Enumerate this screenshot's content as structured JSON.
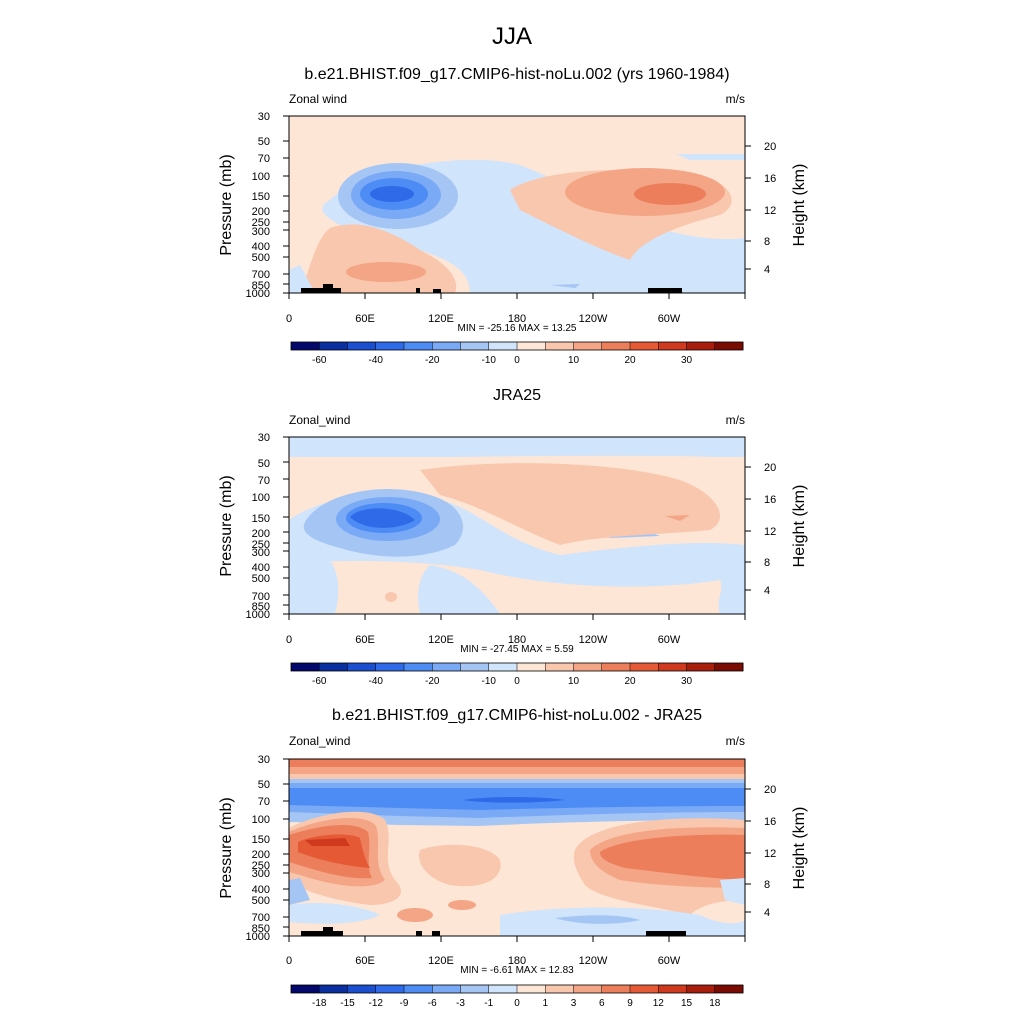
{
  "figure": {
    "title": "JJA"
  },
  "chart_data": [
    {
      "type": "heatmap",
      "title": "b.e21.BHIST.f09_g17.CMIP6-hist-noLu.002 (yrs 1960-1984)",
      "left_label": "Zonal wind",
      "right_label": "m/s",
      "stats": "MIN = -25.16  MAX =  13.25",
      "ylabel": "Pressure (mb)",
      "ylabel_right": "Height (km)",
      "x_ticks": [
        "0",
        "60E",
        "120E",
        "180",
        "120W",
        "60W"
      ],
      "y_ticks": [
        "30",
        "50",
        "70",
        "100",
        "150",
        "200",
        "250",
        "300",
        "400",
        "500",
        "700",
        "850",
        "1000"
      ],
      "height_ticks": [
        "20",
        "16",
        "12",
        "8",
        "4"
      ],
      "colorbar_labels": [
        "-60",
        "-40",
        "-20",
        "-10",
        "0",
        "10",
        "20",
        "30"
      ],
      "colorbar_colors": [
        "#04076b",
        "#0a2fa1",
        "#1b4fd0",
        "#2f6be8",
        "#4d8cf5",
        "#7aaaf6",
        "#a5c6f4",
        "#d0e4fb",
        "#fde6d6",
        "#f9c7ad",
        "#f3a586",
        "#ec7e5b",
        "#e55a35",
        "#cf3a1f",
        "#a91d0c",
        "#7a0b03"
      ],
      "levels": [
        -60,
        -50,
        -40,
        -30,
        -20,
        -15,
        -10,
        -5,
        0,
        5,
        10,
        15,
        20,
        25,
        30
      ]
    },
    {
      "type": "heatmap",
      "title": "JRA25",
      "left_label": "Zonal_wind",
      "right_label": "m/s",
      "stats": "MIN = -27.45  MAX =   5.59",
      "ylabel": "Pressure (mb)",
      "ylabel_right": "Height (km)",
      "x_ticks": [
        "0",
        "60E",
        "120E",
        "180",
        "120W",
        "60W"
      ],
      "y_ticks": [
        "30",
        "50",
        "70",
        "100",
        "150",
        "200",
        "250",
        "300",
        "400",
        "500",
        "700",
        "850",
        "1000"
      ],
      "height_ticks": [
        "20",
        "16",
        "12",
        "8",
        "4"
      ],
      "colorbar_labels": [
        "-60",
        "-40",
        "-20",
        "-10",
        "0",
        "10",
        "20",
        "30"
      ],
      "colorbar_colors": [
        "#04076b",
        "#0a2fa1",
        "#1b4fd0",
        "#2f6be8",
        "#4d8cf5",
        "#7aaaf6",
        "#a5c6f4",
        "#d0e4fb",
        "#fde6d6",
        "#f9c7ad",
        "#f3a586",
        "#ec7e5b",
        "#e55a35",
        "#cf3a1f",
        "#a91d0c",
        "#7a0b03"
      ],
      "levels": [
        -60,
        -50,
        -40,
        -30,
        -20,
        -15,
        -10,
        -5,
        0,
        5,
        10,
        15,
        20,
        25,
        30
      ]
    },
    {
      "type": "heatmap",
      "title": "b.e21.BHIST.f09_g17.CMIP6-hist-noLu.002 - JRA25",
      "left_label": "Zonal_wind",
      "right_label": "m/s",
      "stats": "MIN =  -6.61  MAX =  12.83",
      "ylabel": "Pressure (mb)",
      "ylabel_right": "Height (km)",
      "x_ticks": [
        "0",
        "60E",
        "120E",
        "180",
        "120W",
        "60W"
      ],
      "y_ticks": [
        "30",
        "50",
        "70",
        "100",
        "150",
        "200",
        "250",
        "300",
        "400",
        "500",
        "700",
        "850",
        "1000"
      ],
      "height_ticks": [
        "20",
        "16",
        "12",
        "8",
        "4"
      ],
      "colorbar_labels": [
        "-18",
        "-15",
        "-12",
        "-9",
        "-6",
        "-3",
        "-1",
        "0",
        "1",
        "3",
        "6",
        "9",
        "12",
        "15",
        "18"
      ],
      "colorbar_colors": [
        "#04076b",
        "#0a2fa1",
        "#1b4fd0",
        "#2f6be8",
        "#4d8cf5",
        "#7aaaf6",
        "#a5c6f4",
        "#d0e4fb",
        "#fde6d6",
        "#f9c7ad",
        "#f3a586",
        "#ec7e5b",
        "#e55a35",
        "#cf3a1f",
        "#a91d0c",
        "#7a0b03"
      ],
      "levels": [
        -18,
        -15,
        -12,
        -9,
        -6,
        -3,
        -1,
        0,
        1,
        3,
        6,
        9,
        12,
        15,
        18
      ]
    }
  ]
}
